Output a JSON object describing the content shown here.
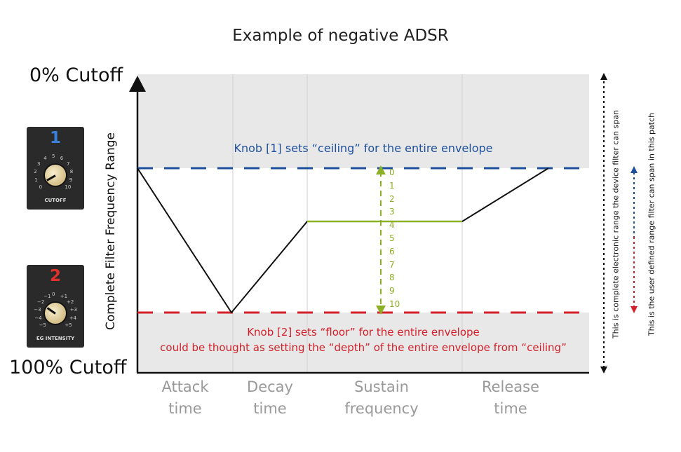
{
  "title": "Example of negative ADSR",
  "y_axis": {
    "label": "Complete Filter Frequency Range",
    "top_label": "0% Cutoff",
    "bottom_label": "100% Cutoff"
  },
  "phases": [
    "Attack\ntime",
    "Decay\ntime",
    "Sustain\nfrequency",
    "Release\ntime"
  ],
  "ceiling_note": "Knob [1] sets “ceiling” for the entire envelope",
  "floor_note": {
    "line1": "Knob [2] sets “floor” for the entire envelope",
    "line2": "could be thought as setting the “depth” of the entire envelope from “ceiling”"
  },
  "sustain_scale": [
    "0",
    "1",
    "2",
    "3",
    "4",
    "5",
    "6",
    "7",
    "8",
    "9",
    "10"
  ],
  "side_notes": {
    "device_range": "This is complete electronic range the device filter can span",
    "user_range": "This is the user defined range filter can span in this patch"
  },
  "knobs": [
    {
      "number": "1",
      "label": "CUTOFF",
      "scale": [
        "0",
        "1",
        "2",
        "3",
        "4",
        "5",
        "6",
        "7",
        "8",
        "9",
        "10"
      ]
    },
    {
      "number": "2",
      "label": "EG INTENSITY",
      "scale": [
        "−5",
        "−4",
        "−3",
        "−2",
        "−1",
        "0",
        "+1",
        "+2",
        "+3",
        "+4",
        "+5"
      ]
    }
  ],
  "colors": {
    "ceiling": "#1e4f9c",
    "floor": "#d4202a",
    "sustain": "#8cb023",
    "shade": "#e8e8e8",
    "envelope": "#111111",
    "phase_text": "#999999",
    "knob1_number": "#3a7fd8",
    "knob2_number": "#e0302a"
  }
}
